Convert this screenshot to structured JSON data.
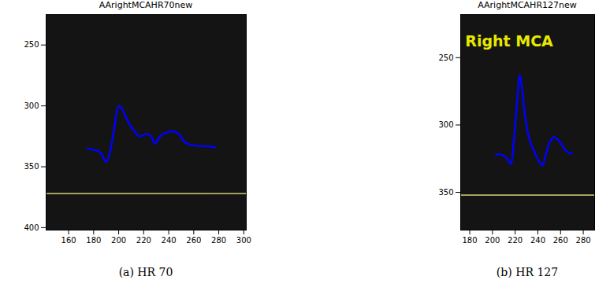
{
  "chart_data": [
    {
      "type": "line",
      "title": "AArightMCAHR70new",
      "caption": "(a) HR 70",
      "xlim": [
        142,
        302
      ],
      "xticks": [
        160,
        180,
        200,
        220,
        240,
        260,
        280,
        300
      ],
      "ylim": [
        402,
        225
      ],
      "yticks": [
        250,
        300,
        350,
        400
      ],
      "series": [
        {
          "color": "#0000ff",
          "x": [
            175,
            180,
            185,
            190,
            193,
            197,
            200,
            203,
            207,
            212,
            217,
            222,
            226,
            229,
            233,
            238,
            243,
            248,
            253,
            258,
            265,
            270,
            277
          ],
          "values": [
            335,
            336,
            338,
            346,
            338,
            315,
            300,
            303,
            312,
            320,
            325,
            323,
            325,
            331,
            325,
            322,
            321,
            323,
            330,
            332,
            333,
            333,
            334
          ]
        },
        {
          "color": "#d2d27a",
          "x": [
            142,
            302
          ],
          "values": [
            372,
            372
          ]
        }
      ]
    },
    {
      "type": "line",
      "title": "AArightMCAHR127new",
      "caption": "(b) HR 127",
      "xlim": [
        172,
        290
      ],
      "xticks": [
        180,
        200,
        220,
        240,
        260,
        280
      ],
      "ylim": [
        378,
        218
      ],
      "yticks": [
        250,
        300,
        350
      ],
      "annotations": [
        {
          "text": "Right MCA",
          "x": 176,
          "y": 238,
          "color": "#e8e800"
        }
      ],
      "series": [
        {
          "color": "#0000ff",
          "x": [
            203,
            208,
            213,
            216,
            219,
            222,
            224,
            226,
            229,
            233,
            237,
            241,
            244,
            247,
            251,
            254,
            258,
            262,
            266,
            270
          ],
          "values": [
            322,
            322,
            325,
            329,
            310,
            280,
            263,
            272,
            295,
            312,
            320,
            327,
            330,
            322,
            312,
            309,
            311,
            316,
            320,
            321
          ]
        },
        {
          "color": "#d2d27a",
          "x": [
            172,
            290
          ],
          "values": [
            352,
            352
          ]
        }
      ]
    }
  ]
}
